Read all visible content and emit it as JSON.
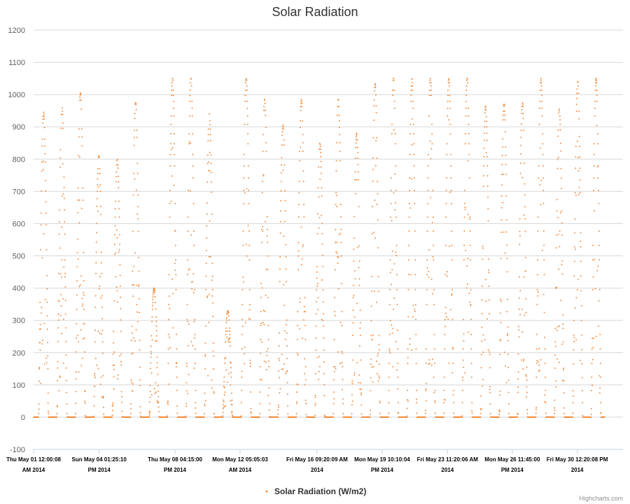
{
  "chart_data": {
    "type": "scatter",
    "title": "Solar Radiation",
    "ylim": [
      -100,
      1200
    ],
    "yticks": [
      -100,
      0,
      100,
      200,
      300,
      400,
      500,
      600,
      700,
      800,
      900,
      1000,
      1100,
      1200
    ],
    "grid": true,
    "legend_position": "bottom-center",
    "xlim": [
      "2014-05-01T00:00:08",
      "2014-06-02T00:00:00"
    ],
    "xticks": [
      {
        "at": "2014-05-01T00:00:08",
        "line1": "Thu May 01 12:00:08",
        "line2": "AM 2014"
      },
      {
        "at": "2014-05-04T13:25:10",
        "line1": "Sun May 04 01:25:10",
        "line2": "PM 2014"
      },
      {
        "at": "2014-05-08T16:15:00",
        "line1": "Thu May 08 04:15:00",
        "line2": "PM 2014"
      },
      {
        "at": "2014-05-12T05:05:03",
        "line1": "Mon May 12 05:05:03",
        "line2": "AM 2014"
      },
      {
        "at": "2014-05-16T09:20:09",
        "line1": "Fri May 16 09:20:09 AM",
        "line2": "2014"
      },
      {
        "at": "2014-05-19T22:10:04",
        "line1": "Mon May 19 10:10:04",
        "line2": "PM 2014"
      },
      {
        "at": "2014-05-23T11:20:06",
        "line1": "Fri May 23 11:20:06 AM",
        "line2": "2014"
      },
      {
        "at": "2014-05-26T23:45:00",
        "line1": "Mon May 26 11:45:00",
        "line2": "PM 2014"
      },
      {
        "at": "2014-05-30T12:20:08",
        "line1": "Fri May 30 12:20:08 PM",
        "line2": "2014"
      }
    ],
    "series": [
      {
        "name": "Solar Radiation (W/m2)",
        "color": "#f28f43",
        "daily_peaks": [
          {
            "date": "2014-05-01",
            "peak": 945
          },
          {
            "date": "2014-05-02",
            "peak": 960
          },
          {
            "date": "2014-05-03",
            "peak": 1005
          },
          {
            "date": "2014-05-04",
            "peak": 810
          },
          {
            "date": "2014-05-05",
            "peak": 800
          },
          {
            "date": "2014-05-06",
            "peak": 975
          },
          {
            "date": "2014-05-07",
            "peak": 400
          },
          {
            "date": "2014-05-08",
            "peak": 1050
          },
          {
            "date": "2014-05-09",
            "peak": 1050
          },
          {
            "date": "2014-05-10",
            "peak": 940
          },
          {
            "date": "2014-05-11",
            "peak": 330
          },
          {
            "date": "2014-05-12",
            "peak": 1050
          },
          {
            "date": "2014-05-13",
            "peak": 985
          },
          {
            "date": "2014-05-14",
            "peak": 905
          },
          {
            "date": "2014-05-15",
            "peak": 985
          },
          {
            "date": "2014-05-16",
            "peak": 850
          },
          {
            "date": "2014-05-17",
            "peak": 985
          },
          {
            "date": "2014-05-18",
            "peak": 880
          },
          {
            "date": "2014-05-19",
            "peak": 1035
          },
          {
            "date": "2014-05-20",
            "peak": 1050
          },
          {
            "date": "2014-05-21",
            "peak": 1050
          },
          {
            "date": "2014-05-22",
            "peak": 1050
          },
          {
            "date": "2014-05-23",
            "peak": 1050
          },
          {
            "date": "2014-05-24",
            "peak": 1050
          },
          {
            "date": "2014-05-25",
            "peak": 965
          },
          {
            "date": "2014-05-26",
            "peak": 970
          },
          {
            "date": "2014-05-27",
            "peak": 975
          },
          {
            "date": "2014-05-28",
            "peak": 1050
          },
          {
            "date": "2014-05-29",
            "peak": 955
          },
          {
            "date": "2014-05-30",
            "peak": 1040
          },
          {
            "date": "2014-05-31",
            "peak": 1050
          }
        ]
      }
    ]
  },
  "credit": "Highcharts.com"
}
